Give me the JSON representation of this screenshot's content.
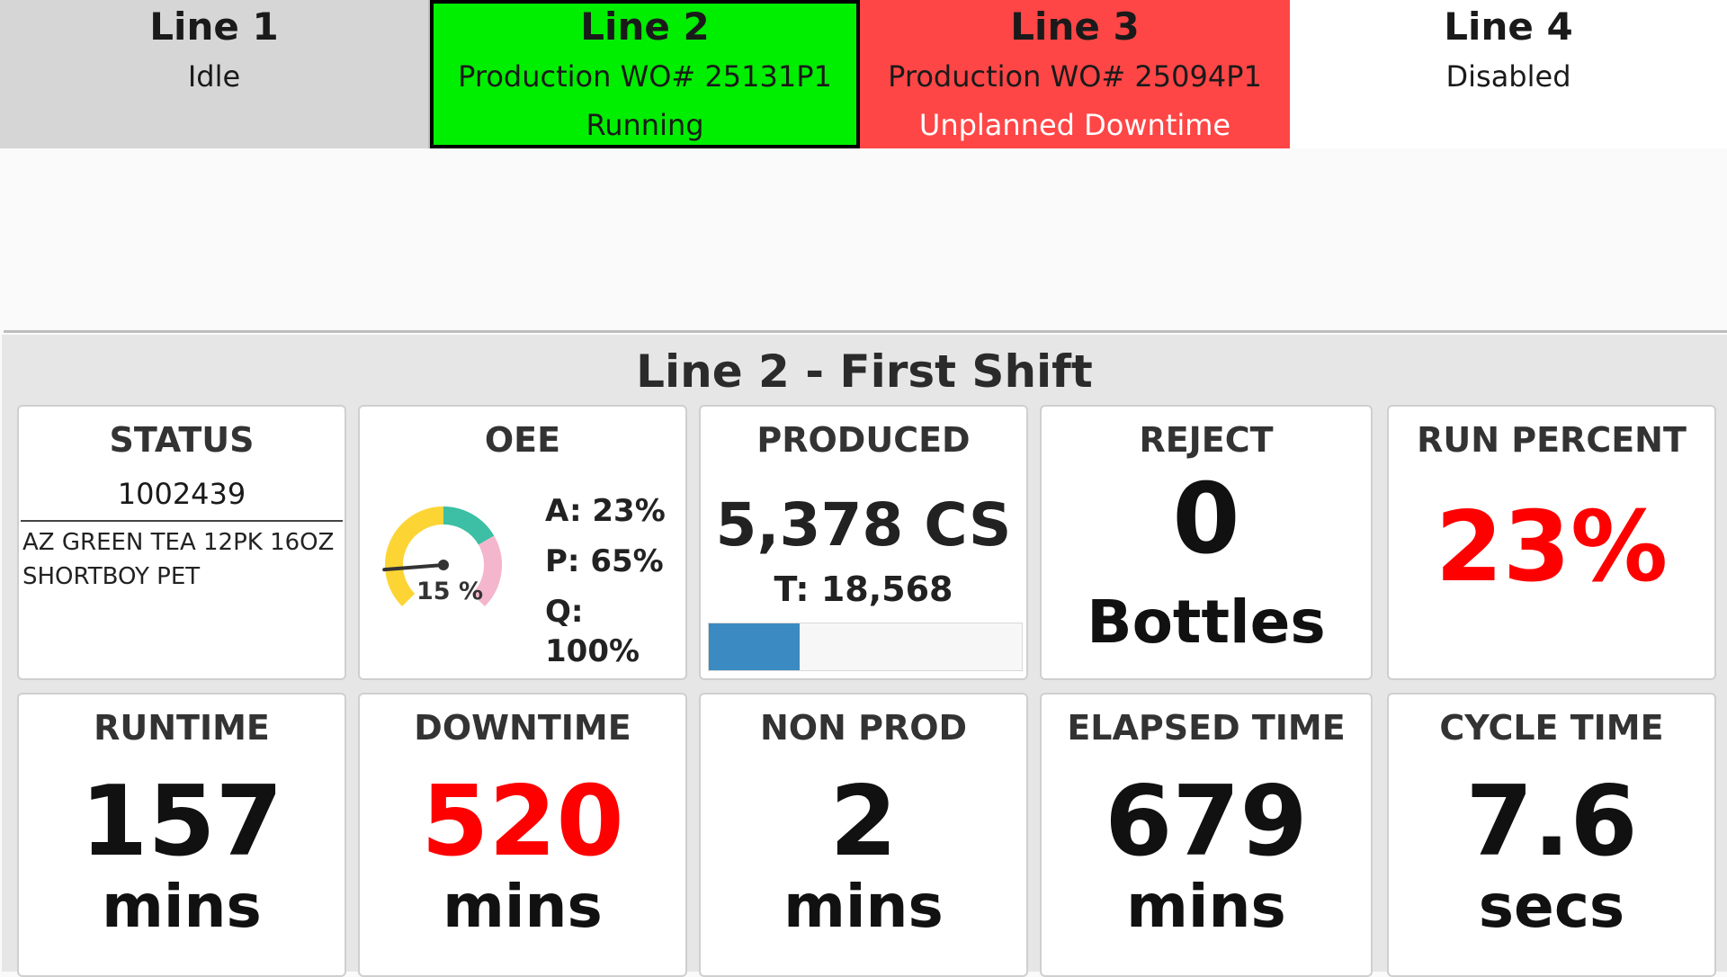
{
  "lines": [
    {
      "title": "Line 1",
      "status": "Idle",
      "color": "#d6d6d6"
    },
    {
      "title": "Line 2",
      "order": "Production WO# 25131P1",
      "status": "Running",
      "color": "#00ee00"
    },
    {
      "title": "Line 3",
      "order": "Production WO# 25094P1",
      "status": "Unplanned Downtime",
      "color": "#ff4646"
    },
    {
      "title": "Line 4",
      "status": "Disabled",
      "color": "#ffffff"
    }
  ],
  "shift": {
    "title": "Line 2 - First Shift",
    "status": {
      "label": "STATUS",
      "work_order": "1002439",
      "product": "AZ GREEN TEA 12PK 16OZ SHORTBOY PET"
    },
    "oee": {
      "label": "OEE",
      "value_percent": 15,
      "gauge_label": "15 %",
      "availability": "A: 23%",
      "performance": "P: 65%",
      "quality": "Q: 100%",
      "gauge_colors": [
        "#fcd535",
        "#3cbfa4",
        "#f4b6cc"
      ]
    },
    "produced": {
      "label": "PRODUCED",
      "value": "5,378 CS",
      "target": "T: 18,568",
      "progress_fraction": 0.29,
      "bar_color": "#3b8bc2"
    },
    "reject": {
      "label": "REJECT",
      "value": "0",
      "unit": "Bottles"
    },
    "run_percent": {
      "label": "RUN PERCENT",
      "value": "23%",
      "color": "#ff0000"
    },
    "runtime": {
      "label": "RUNTIME",
      "value": "157",
      "unit": "mins"
    },
    "downtime": {
      "label": "DOWNTIME",
      "value": "520",
      "unit": "mins",
      "color": "#ff0000"
    },
    "non_prod": {
      "label": "NON PROD",
      "value": "2",
      "unit": "mins"
    },
    "elapsed": {
      "label": "ELAPSED TIME",
      "value": "679",
      "unit": "mins"
    },
    "cycle": {
      "label": "CYCLE TIME",
      "value": "7.6",
      "unit": "secs"
    }
  }
}
